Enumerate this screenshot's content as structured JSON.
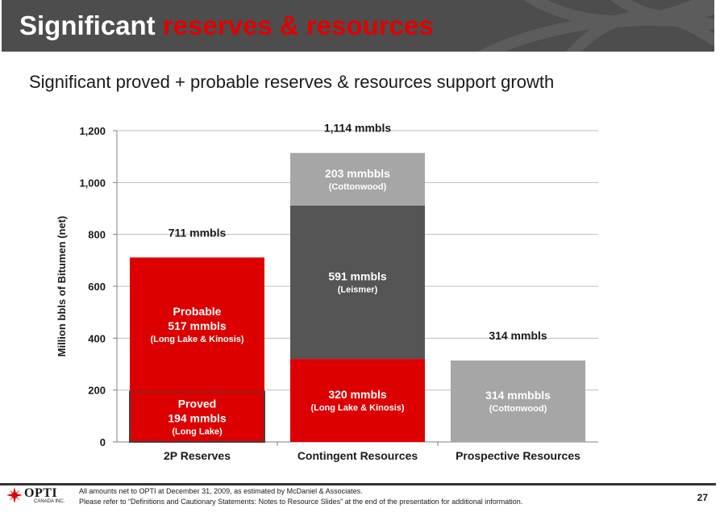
{
  "header": {
    "title_part1": "Significant",
    "title_part2": "reserves & resources"
  },
  "subtitle": "Significant proved + probable reserves & resources support growth",
  "chart_data": {
    "type": "bar",
    "stacked": true,
    "categories": [
      "2P Reserves",
      "Contingent Resources",
      "Prospective Resources"
    ],
    "ylabel": "Million bbls of Bitumen (net)",
    "ylim": [
      0,
      1200
    ],
    "yticks": [
      0,
      200,
      400,
      600,
      800,
      1000,
      1200
    ],
    "ytick_labels": [
      "0",
      "200",
      "400",
      "600",
      "800",
      "1,000",
      "1,200"
    ],
    "grid": true,
    "totals": [
      {
        "category": "2P Reserves",
        "value": 711,
        "label": "711 mmbls"
      },
      {
        "category": "Contingent Resources",
        "value": 1114,
        "label": "1,114 mmbls"
      },
      {
        "category": "Prospective Resources",
        "value": 314,
        "label": "314 mmbls"
      }
    ],
    "segments": [
      {
        "category": 0,
        "bottom": 0,
        "value": 194,
        "color": "#dd0000",
        "outlined": true,
        "lines": [
          "Proved",
          "194 mmbls",
          "(Long Lake)"
        ]
      },
      {
        "category": 0,
        "bottom": 194,
        "value": 517,
        "color": "#dd0000",
        "lines": [
          "Probable",
          "517 mmbls",
          "(Long Lake & Kinosis)"
        ]
      },
      {
        "category": 1,
        "bottom": 0,
        "value": 320,
        "color": "#dd0000",
        "lines": [
          "320 mmbls",
          "(Long Lake & Kinosis)"
        ]
      },
      {
        "category": 1,
        "bottom": 320,
        "value": 591,
        "color": "#555555",
        "lines": [
          "591 mmbls",
          "(Leismer)"
        ]
      },
      {
        "category": 1,
        "bottom": 911,
        "value": 203,
        "color": "#a6a6a6",
        "lines": [
          "203 mmbbls",
          "(Cottonwood)"
        ]
      },
      {
        "category": 2,
        "bottom": 0,
        "value": 314,
        "color": "#a6a6a6",
        "lines": [
          "314 mmbbls",
          "(Cottonwood)"
        ]
      }
    ]
  },
  "footer": {
    "logo_text": "OPTI",
    "logo_sub": "CANADA INC.",
    "note_line1": "All amounts net to OPTI at December 31, 2009, as estimated by McDaniel & Associates.",
    "note_line2": "Please refer to “Definitions and Cautionary Statements: Notes to Resource Slides” at the end of the presentation for additional information.",
    "page": "27"
  },
  "colors": {
    "header_bg": "#4d4d4d",
    "accent_red": "#dd0000",
    "dark_gray": "#555555",
    "light_gray": "#a6a6a6"
  }
}
